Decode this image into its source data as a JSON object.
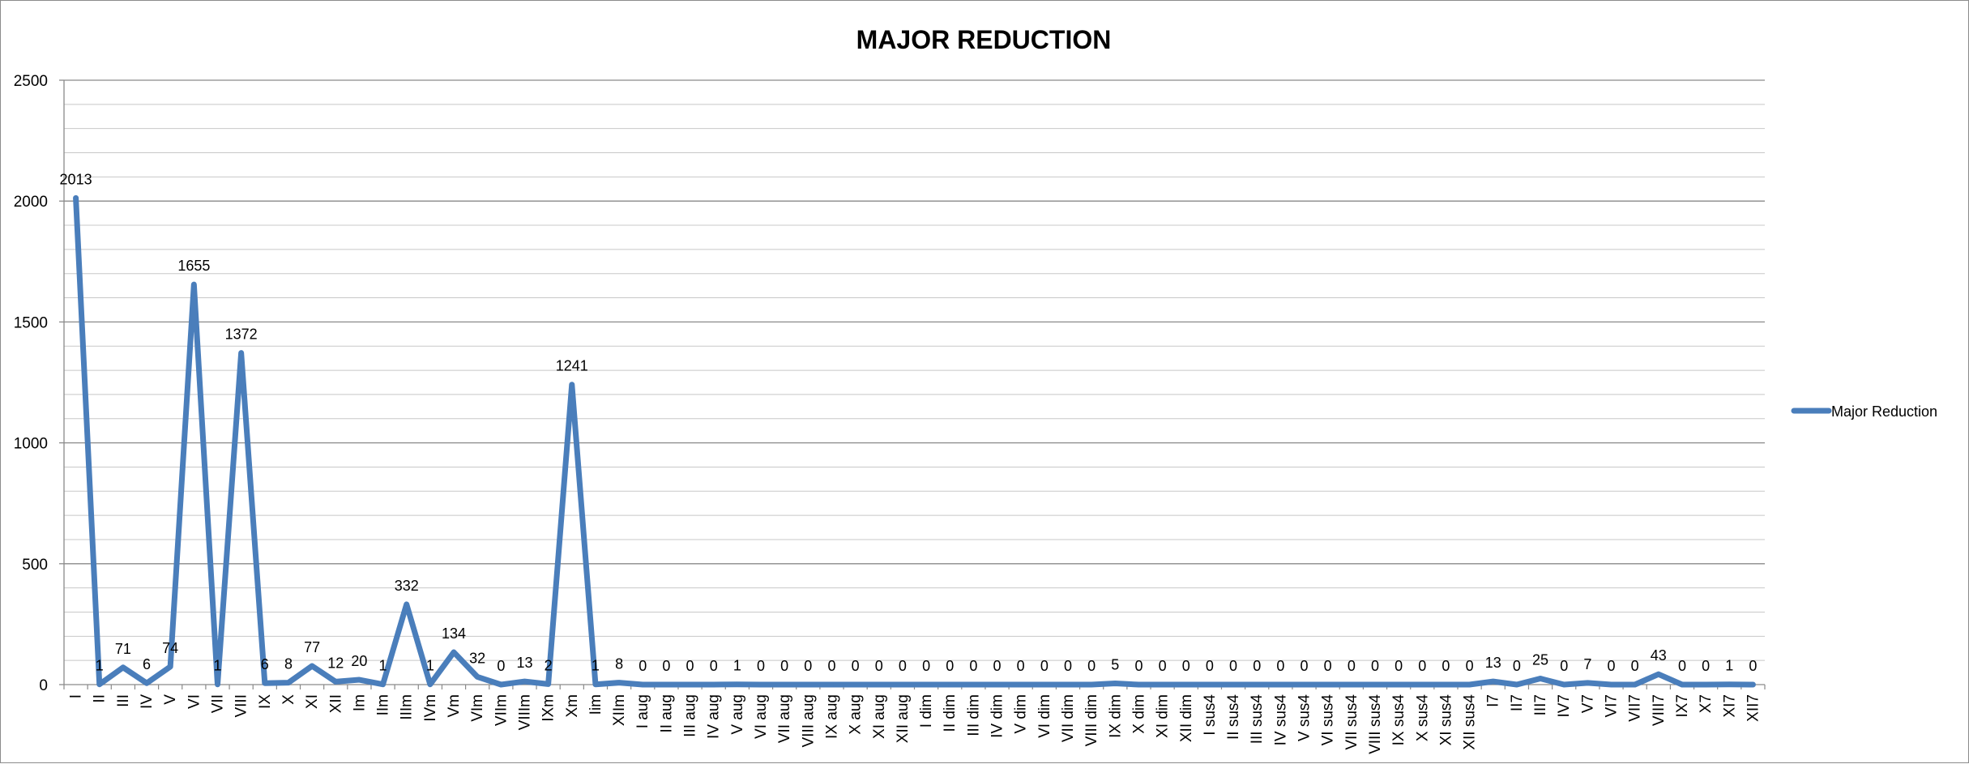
{
  "chart_data": {
    "type": "line",
    "title": "MAJOR REDUCTION",
    "xlabel": "",
    "ylabel": "",
    "ylim": [
      0,
      2500
    ],
    "yticks": [
      0,
      500,
      1000,
      1500,
      2000,
      2500
    ],
    "grid": true,
    "legend_position": "right",
    "categories": [
      "I",
      "II",
      "III",
      "IV",
      "V",
      "VI",
      "VII",
      "VIII",
      "IX",
      "X",
      "XI",
      "XII",
      "Im",
      "IIm",
      "IIIm",
      "IVm",
      "Vm",
      "VIm",
      "VIIm",
      "VIIIm",
      "IXm",
      "Xm",
      "Iim",
      "XIIm",
      "I aug",
      "II aug",
      "III aug",
      "IV aug",
      "V aug",
      "VI aug",
      "VII aug",
      "VIII aug",
      "IX aug",
      "X aug",
      "XI aug",
      "XII aug",
      "I dim",
      "II dim",
      "III dim",
      "IV dim",
      "V dim",
      "VI dim",
      "VII dim",
      "VIII dim",
      "IX dim",
      "X dim",
      "XI dim",
      "XII dim",
      "I sus4",
      "II sus4",
      "III sus4",
      "IV sus4",
      "V sus4",
      "VI sus4",
      "VII sus4",
      "VIII sus4",
      "IX sus4",
      "X sus4",
      "XI sus4",
      "XII sus4",
      "I7",
      "II7",
      "III7",
      "IV7",
      "V7",
      "VI7",
      "VII7",
      "VIII7",
      "IX7",
      "X7",
      "XI7",
      "XII7"
    ],
    "series": [
      {
        "name": "Major Reduction",
        "color": "#4a7ebb",
        "values": [
          2013,
          1,
          71,
          6,
          74,
          1655,
          1,
          1372,
          6,
          8,
          77,
          12,
          20,
          1,
          332,
          1,
          134,
          32,
          0,
          13,
          2,
          1241,
          1,
          8,
          0,
          0,
          0,
          0,
          1,
          0,
          0,
          0,
          0,
          0,
          0,
          0,
          0,
          0,
          0,
          0,
          0,
          0,
          0,
          0,
          5,
          0,
          0,
          0,
          0,
          0,
          0,
          0,
          0,
          0,
          0,
          0,
          0,
          0,
          0,
          0,
          13,
          0,
          25,
          0,
          7,
          0,
          0,
          43,
          0,
          0,
          1,
          0
        ]
      }
    ]
  }
}
